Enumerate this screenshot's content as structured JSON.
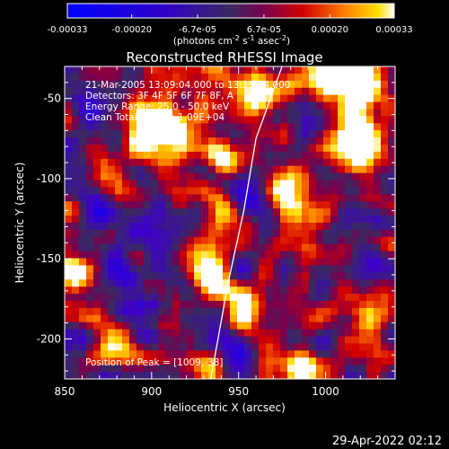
{
  "chart_data": {
    "type": "heatmap",
    "title": "Reconstructed RHESSI Image",
    "xlabel": "Heliocentric X (arcsec)",
    "ylabel": "Heliocentric Y (arcsec)",
    "xlim": [
      850,
      1040
    ],
    "ylim": [
      -225,
      -30
    ],
    "x_ticks": [
      850,
      900,
      950,
      1000
    ],
    "y_ticks": [
      -50,
      -100,
      -150,
      -200
    ],
    "colorbar": {
      "ticks": [
        "-0.00033",
        "-0.00020",
        "-6.7e-05",
        "6.7e-05",
        "0.00020",
        "0.00033"
      ],
      "tick_values": [
        -0.00033,
        -0.0002,
        -6.7e-05,
        6.7e-05,
        0.0002,
        0.00033
      ],
      "range": [
        -0.00033,
        0.00033
      ],
      "units_line": "(photons cm",
      "units_exp1": "-2",
      "units_mid": " s",
      "units_exp2": "-1",
      "units_mid2": " asec",
      "units_exp3": "-2",
      "units_end": ")"
    },
    "annotations": [
      "21-Mar-2005 13:09:04.000 to 13:15:04.000",
      "Detectors: 3F 4F 5F 6F 7F 8F, A",
      "Energy Range: 25.0 - 50.0 keV",
      "Clean    Total counts: 1.09E+04"
    ],
    "peak_label": "Position of Peak = [1009,-38]",
    "limb_curve": [
      [
        975,
        -30
      ],
      [
        960,
        -75
      ],
      [
        953,
        -120
      ],
      [
        944,
        -165
      ],
      [
        934,
        -225
      ]
    ],
    "bright_sources": [
      {
        "x": 905,
        "y": -70,
        "sx": 16,
        "sy": 14,
        "amp": 0.95
      },
      {
        "x": 960,
        "y": -45,
        "sx": 14,
        "sy": 10,
        "amp": 1.0
      },
      {
        "x": 1010,
        "y": -40,
        "sx": 14,
        "sy": 9,
        "amp": 1.0
      },
      {
        "x": 1020,
        "y": -75,
        "sx": 10,
        "sy": 14,
        "amp": 0.9
      },
      {
        "x": 985,
        "y": -120,
        "sx": 12,
        "sy": 18,
        "amp": 0.85
      },
      {
        "x": 945,
        "y": -130,
        "sx": 10,
        "sy": 10,
        "amp": 0.7
      },
      {
        "x": 930,
        "y": -160,
        "sx": 9,
        "sy": 10,
        "amp": 0.7
      },
      {
        "x": 855,
        "y": -160,
        "sx": 6,
        "sy": 8,
        "amp": 0.8
      },
      {
        "x": 955,
        "y": -190,
        "sx": 8,
        "sy": 12,
        "amp": 0.75
      },
      {
        "x": 1025,
        "y": -190,
        "sx": 10,
        "sy": 16,
        "amp": 0.6
      },
      {
        "x": 880,
        "y": -205,
        "sx": 12,
        "sy": 8,
        "amp": 0.7
      },
      {
        "x": 990,
        "y": -215,
        "sx": 10,
        "sy": 8,
        "amp": 0.6
      }
    ]
  },
  "footer": {
    "timestamp": "29-Apr-2022 02:12"
  }
}
